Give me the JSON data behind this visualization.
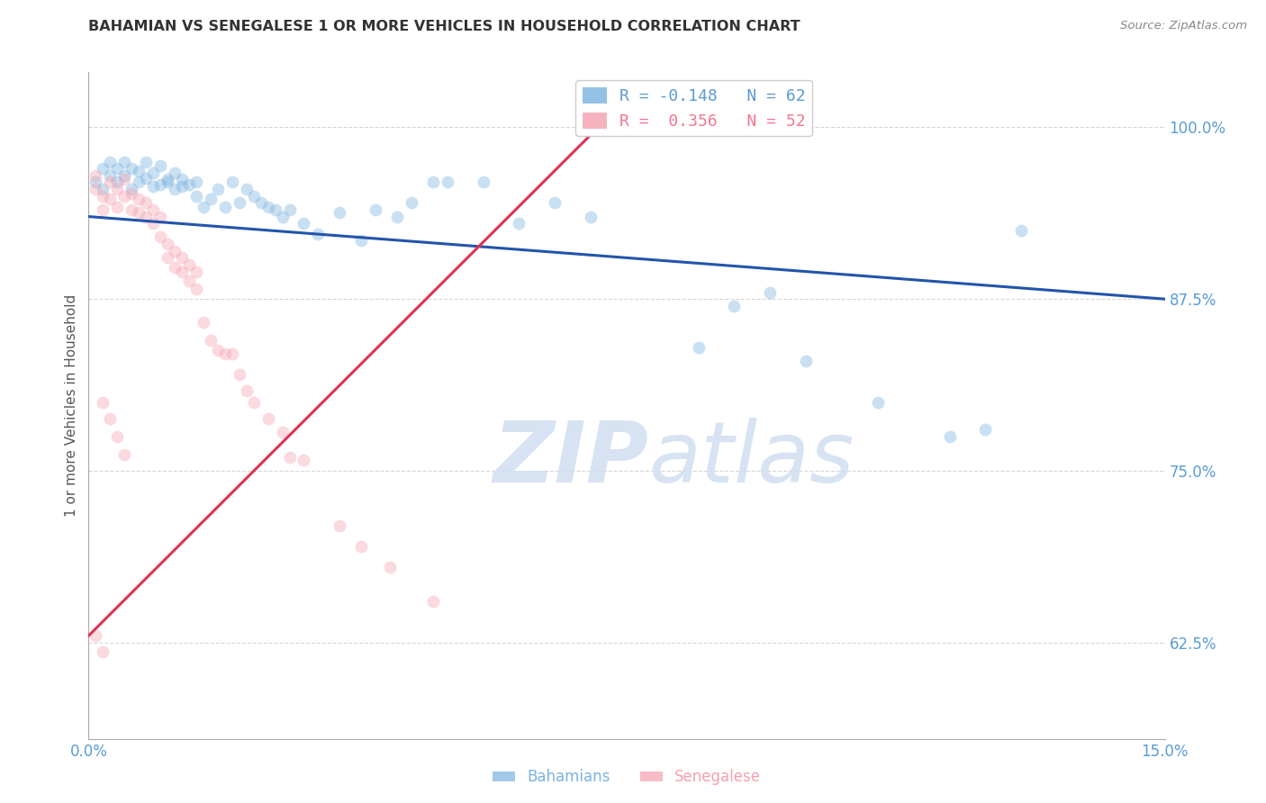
{
  "title": "BAHAMIAN VS SENEGALESE 1 OR MORE VEHICLES IN HOUSEHOLD CORRELATION CHART",
  "source": "Source: ZipAtlas.com",
  "ylabel": "1 or more Vehicles in Household",
  "ytick_labels": [
    "100.0%",
    "87.5%",
    "75.0%",
    "62.5%"
  ],
  "ytick_values": [
    1.0,
    0.875,
    0.75,
    0.625
  ],
  "xmin": 0.0,
  "xmax": 0.15,
  "ymin": 0.555,
  "ymax": 1.04,
  "legend_entries": [
    {
      "label": "R = -0.148   N = 62",
      "color": "#5b9bd5"
    },
    {
      "label": "R =  0.356   N = 52",
      "color": "#f4778f"
    }
  ],
  "watermark_zip": "ZIP",
  "watermark_atlas": "atlas",
  "blue_scatter_x": [
    0.001,
    0.002,
    0.002,
    0.003,
    0.003,
    0.004,
    0.004,
    0.005,
    0.005,
    0.006,
    0.006,
    0.007,
    0.007,
    0.008,
    0.008,
    0.009,
    0.009,
    0.01,
    0.01,
    0.011,
    0.011,
    0.012,
    0.012,
    0.013,
    0.013,
    0.014,
    0.015,
    0.015,
    0.016,
    0.017,
    0.018,
    0.019,
    0.02,
    0.021,
    0.022,
    0.023,
    0.024,
    0.025,
    0.026,
    0.027,
    0.028,
    0.03,
    0.032,
    0.035,
    0.038,
    0.04,
    0.043,
    0.045,
    0.048,
    0.05,
    0.055,
    0.06,
    0.065,
    0.07,
    0.085,
    0.09,
    0.095,
    0.1,
    0.11,
    0.12,
    0.125,
    0.13
  ],
  "blue_scatter_y": [
    0.96,
    0.955,
    0.97,
    0.965,
    0.975,
    0.96,
    0.97,
    0.965,
    0.975,
    0.955,
    0.97,
    0.96,
    0.968,
    0.963,
    0.975,
    0.957,
    0.967,
    0.958,
    0.972,
    0.962,
    0.96,
    0.955,
    0.967,
    0.962,
    0.957,
    0.958,
    0.95,
    0.96,
    0.942,
    0.948,
    0.955,
    0.942,
    0.96,
    0.945,
    0.955,
    0.95,
    0.945,
    0.942,
    0.94,
    0.935,
    0.94,
    0.93,
    0.922,
    0.938,
    0.918,
    0.94,
    0.935,
    0.945,
    0.96,
    0.96,
    0.96,
    0.93,
    0.945,
    0.935,
    0.84,
    0.87,
    0.88,
    0.83,
    0.8,
    0.775,
    0.78,
    0.925
  ],
  "pink_scatter_x": [
    0.001,
    0.001,
    0.002,
    0.002,
    0.003,
    0.003,
    0.004,
    0.004,
    0.005,
    0.005,
    0.006,
    0.006,
    0.007,
    0.007,
    0.008,
    0.008,
    0.009,
    0.009,
    0.01,
    0.01,
    0.011,
    0.011,
    0.012,
    0.012,
    0.013,
    0.013,
    0.014,
    0.014,
    0.015,
    0.015,
    0.016,
    0.017,
    0.018,
    0.019,
    0.02,
    0.021,
    0.022,
    0.023,
    0.025,
    0.027,
    0.028,
    0.03,
    0.035,
    0.038,
    0.042,
    0.048,
    0.002,
    0.003,
    0.004,
    0.005,
    0.001,
    0.002
  ],
  "pink_scatter_y": [
    0.965,
    0.955,
    0.95,
    0.94,
    0.96,
    0.948,
    0.955,
    0.942,
    0.962,
    0.95,
    0.94,
    0.952,
    0.938,
    0.948,
    0.935,
    0.945,
    0.94,
    0.93,
    0.935,
    0.92,
    0.915,
    0.905,
    0.91,
    0.898,
    0.905,
    0.895,
    0.9,
    0.888,
    0.895,
    0.882,
    0.858,
    0.845,
    0.838,
    0.835,
    0.835,
    0.82,
    0.808,
    0.8,
    0.788,
    0.778,
    0.76,
    0.758,
    0.71,
    0.695,
    0.68,
    0.655,
    0.8,
    0.788,
    0.775,
    0.762,
    0.63,
    0.618
  ],
  "blue_line_x": [
    0.0,
    0.15
  ],
  "blue_line_y": [
    0.935,
    0.875
  ],
  "pink_line_x": [
    0.0,
    0.072
  ],
  "pink_line_y": [
    0.63,
    1.005
  ],
  "scatter_size": 100,
  "scatter_alpha": 0.4,
  "blue_color": "#7ab3e0",
  "pink_color": "#f4a0b0",
  "blue_line_color": "#2255aa",
  "pink_line_color": "#dd3355",
  "grid_color": "#cccccc",
  "axis_color": "#5b9bd5",
  "background_color": "#ffffff"
}
